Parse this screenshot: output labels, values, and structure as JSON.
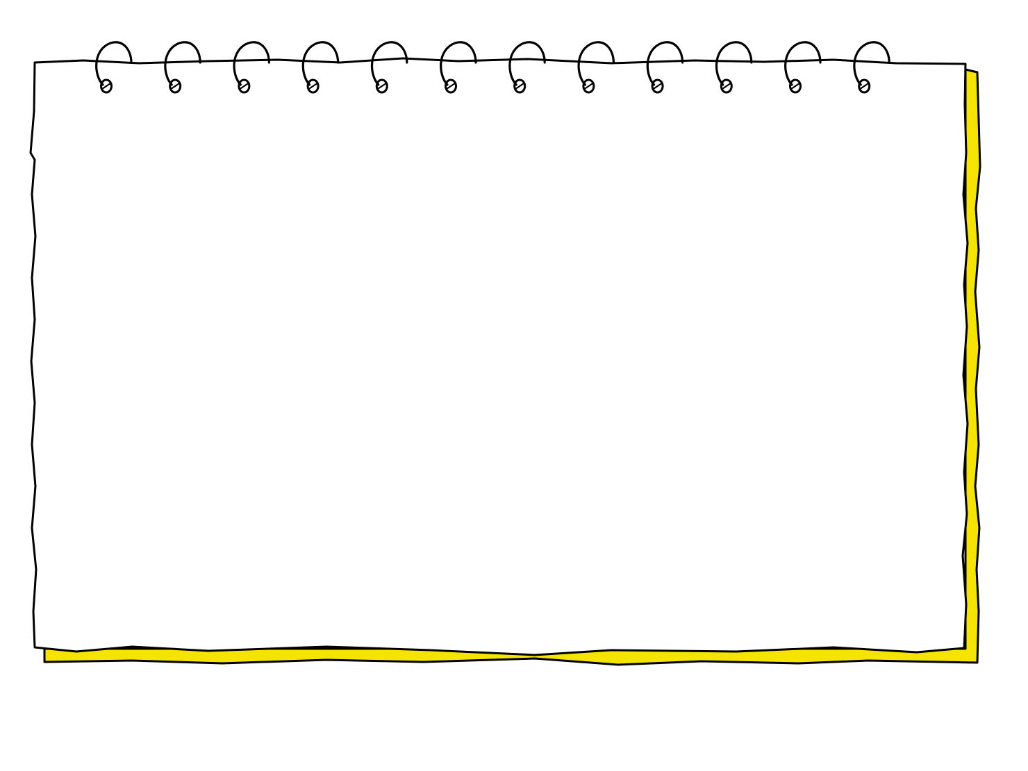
{
  "illustration": {
    "subject": "spiral-notepad",
    "spiral_ring_count": 12
  },
  "colors": {
    "background": "#ffffff",
    "page_fill": "#ffffff",
    "back_sheet_fill": "#f5e400",
    "outline": "#000000"
  }
}
